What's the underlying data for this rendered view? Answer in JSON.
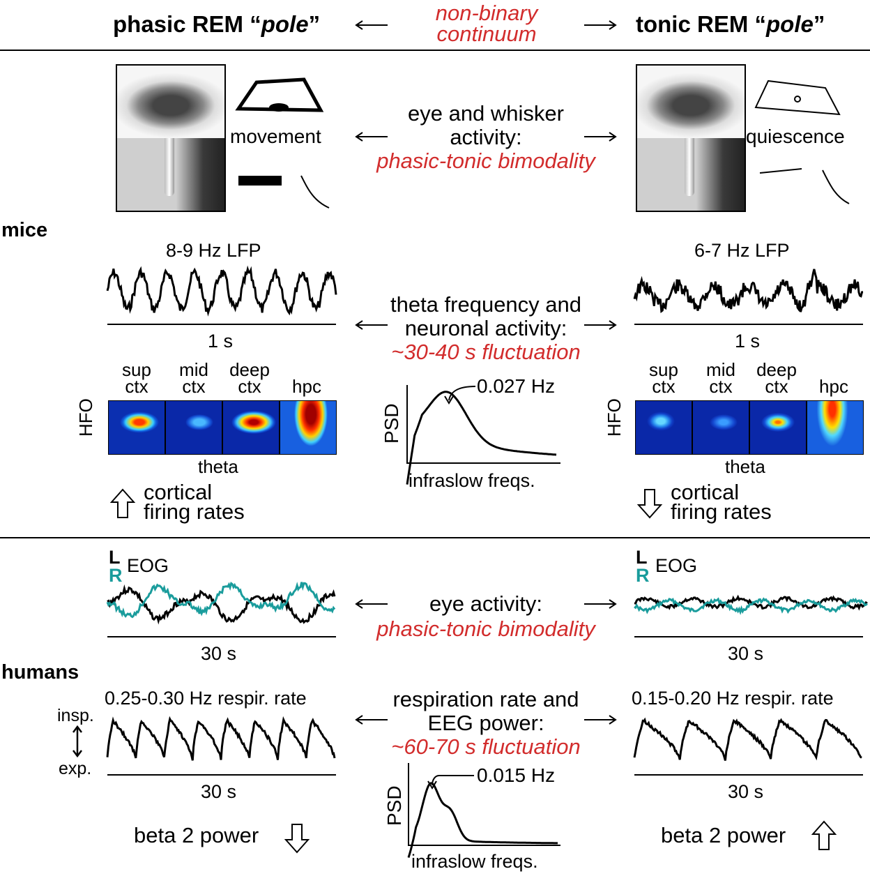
{
  "header": {
    "left_title_prefix": "phasic REM “",
    "left_title_em": "pole",
    "left_title_suffix": "”",
    "right_title_prefix": "tonic REM “",
    "right_title_em": "pole",
    "right_title_suffix": "”",
    "center_line1": "non-binary",
    "center_line2": "continuum"
  },
  "mice": {
    "section_label": "mice",
    "left_movement": "movement",
    "right_quiescence": "quiescence",
    "eye_whisker_line1": "eye and whisker",
    "eye_whisker_line2": "activity:",
    "eye_whisker_red": "phasic-tonic bimodality",
    "left_lfp_title": "8-9 Hz LFP",
    "right_lfp_title": "6-7 Hz LFP",
    "left_scale": "1 s",
    "right_scale": "1 s",
    "theta_line1": "theta frequency and",
    "theta_line2": "neuronal activity:",
    "theta_red": "~30-40 s fluctuation",
    "hfo_labels": [
      {
        "l1": "sup",
        "l2": "ctx"
      },
      {
        "l1": "mid",
        "l2": "ctx"
      },
      {
        "l1": "deep",
        "l2": "ctx"
      },
      {
        "l1": "",
        "l2": "hpc"
      }
    ],
    "hfo_axis": "HFO",
    "theta_axis": "theta",
    "psd_label": "PSD",
    "psd_peak": "0.027 Hz",
    "psd_xlabel": "infraslow freqs.",
    "left_firing_l1": "cortical",
    "left_firing_l2": "firing rates",
    "right_firing_l1": "cortical",
    "right_firing_l2": "firing rates"
  },
  "humans": {
    "section_label": "humans",
    "eog_L": "L",
    "eog_R": "R",
    "eog_title": "EOG",
    "eye_activity": "eye activity:",
    "eye_red": "phasic-tonic bimodality",
    "left_eog_scale": "30 s",
    "right_eog_scale": "30 s",
    "left_resp_title": "0.25-0.30 Hz respir. rate",
    "right_resp_title": "0.15-0.20 Hz respir. rate",
    "insp": "insp.",
    "exp": "exp.",
    "resp_line1": "respiration rate and",
    "resp_line2": "EEG power:",
    "resp_red": "~60-70 s fluctuation",
    "left_resp_scale": "30 s",
    "right_resp_scale": "30 s",
    "psd_label": "PSD",
    "psd_peak": "0.015 Hz",
    "psd_xlabel": "infraslow freqs.",
    "left_beta": "beta 2 power",
    "right_beta": "beta 2 power"
  },
  "colors": {
    "accent_red": "#d22c2c",
    "teal": "#1a9c9c",
    "line": "#000000"
  }
}
